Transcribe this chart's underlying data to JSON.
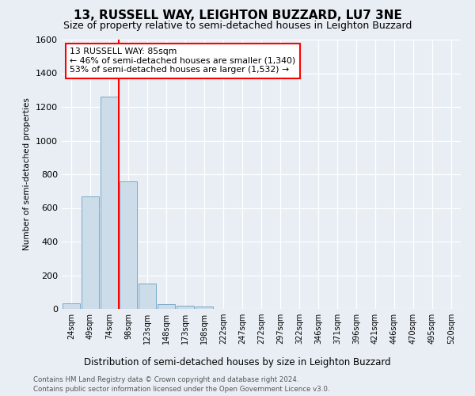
{
  "title": "13, RUSSELL WAY, LEIGHTON BUZZARD, LU7 3NE",
  "subtitle": "Size of property relative to semi-detached houses in Leighton Buzzard",
  "xlabel": "Distribution of semi-detached houses by size in Leighton Buzzard",
  "ylabel": "Number of semi-detached properties",
  "footnote1": "Contains HM Land Registry data © Crown copyright and database right 2024.",
  "footnote2": "Contains public sector information licensed under the Open Government Licence v3.0.",
  "bin_labels": [
    "24sqm",
    "49sqm",
    "74sqm",
    "98sqm",
    "123sqm",
    "148sqm",
    "173sqm",
    "198sqm",
    "222sqm",
    "247sqm",
    "272sqm",
    "297sqm",
    "322sqm",
    "346sqm",
    "371sqm",
    "396sqm",
    "421sqm",
    "446sqm",
    "470sqm",
    "495sqm",
    "520sqm"
  ],
  "bar_values": [
    35,
    670,
    1260,
    760,
    150,
    30,
    20,
    15,
    0,
    0,
    0,
    0,
    0,
    0,
    0,
    0,
    0,
    0,
    0,
    0,
    0
  ],
  "bar_color": "#ccdce8",
  "bar_edge_color": "#7aaac8",
  "annotation_title": "13 RUSSELL WAY: 85sqm",
  "annotation_line1": "← 46% of semi-detached houses are smaller (1,340)",
  "annotation_line2": "53% of semi-detached houses are larger (1,532) →",
  "ylim_max": 1600,
  "yticks": [
    0,
    200,
    400,
    600,
    800,
    1000,
    1200,
    1400,
    1600
  ],
  "red_line_x": 2.5,
  "background_color": "#e8eef4",
  "grid_color": "#ffffff",
  "title_fontsize": 11,
  "subtitle_fontsize": 9
}
